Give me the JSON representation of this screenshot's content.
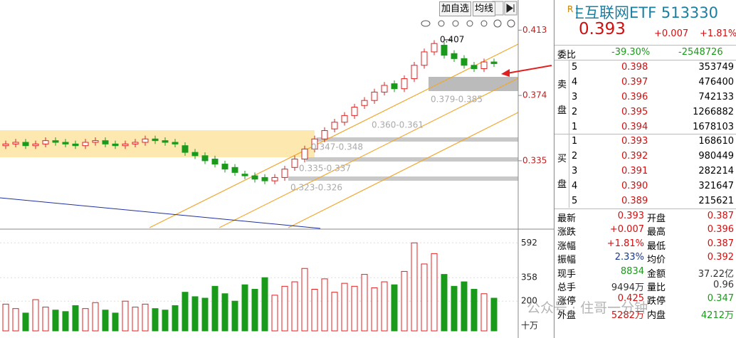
{
  "chart_data": {
    "type": "candlestick",
    "open": [
      0.344,
      0.345,
      0.346,
      0.344,
      0.345,
      0.347,
      0.346,
      0.345,
      0.344,
      0.346,
      0.347,
      0.345,
      0.344,
      0.345,
      0.346,
      0.348,
      0.347,
      0.346,
      0.344,
      0.34,
      0.338,
      0.336,
      0.333,
      0.331,
      0.327,
      0.326,
      0.325,
      0.323,
      0.325,
      0.331,
      0.336,
      0.342,
      0.348,
      0.354,
      0.358,
      0.362,
      0.368,
      0.371,
      0.376,
      0.381,
      0.378,
      0.384,
      0.392,
      0.4,
      0.404,
      0.399,
      0.396,
      0.392,
      0.39,
      0.394
    ],
    "close": [
      0.345,
      0.346,
      0.344,
      0.345,
      0.347,
      0.346,
      0.345,
      0.344,
      0.346,
      0.347,
      0.345,
      0.344,
      0.345,
      0.346,
      0.348,
      0.347,
      0.346,
      0.345,
      0.34,
      0.338,
      0.335,
      0.333,
      0.33,
      0.328,
      0.326,
      0.324,
      0.323,
      0.325,
      0.33,
      0.336,
      0.342,
      0.348,
      0.353,
      0.358,
      0.362,
      0.367,
      0.371,
      0.376,
      0.38,
      0.378,
      0.384,
      0.392,
      0.4,
      0.405,
      0.398,
      0.396,
      0.392,
      0.39,
      0.394,
      0.393
    ],
    "high": [
      0.347,
      0.348,
      0.348,
      0.347,
      0.349,
      0.349,
      0.348,
      0.347,
      0.348,
      0.349,
      0.349,
      0.347,
      0.347,
      0.348,
      0.35,
      0.35,
      0.349,
      0.348,
      0.346,
      0.342,
      0.34,
      0.338,
      0.335,
      0.333,
      0.329,
      0.328,
      0.327,
      0.327,
      0.332,
      0.338,
      0.344,
      0.35,
      0.355,
      0.36,
      0.364,
      0.369,
      0.373,
      0.378,
      0.382,
      0.383,
      0.386,
      0.394,
      0.402,
      0.407,
      0.406,
      0.401,
      0.398,
      0.394,
      0.396,
      0.396
    ],
    "low": [
      0.342,
      0.343,
      0.342,
      0.342,
      0.343,
      0.344,
      0.343,
      0.342,
      0.342,
      0.344,
      0.343,
      0.342,
      0.342,
      0.343,
      0.344,
      0.345,
      0.344,
      0.343,
      0.338,
      0.336,
      0.333,
      0.331,
      0.328,
      0.326,
      0.324,
      0.322,
      0.321,
      0.321,
      0.323,
      0.329,
      0.334,
      0.34,
      0.346,
      0.352,
      0.356,
      0.36,
      0.366,
      0.369,
      0.374,
      0.376,
      0.376,
      0.382,
      0.39,
      0.398,
      0.396,
      0.394,
      0.39,
      0.388,
      0.388,
      0.391
    ],
    "ylim": [
      0.295,
      0.431
    ],
    "yticks": [
      0.413,
      0.374,
      0.335
    ],
    "up_color": "#e02020",
    "down_color": "#1a9a1a",
    "volume": {
      "values": [
        180,
        150,
        120,
        210,
        160,
        140,
        130,
        170,
        150,
        190,
        140,
        120,
        200,
        160,
        180,
        150,
        140,
        170,
        260,
        230,
        220,
        300,
        250,
        200,
        310,
        280,
        358,
        240,
        300,
        330,
        420,
        280,
        350,
        260,
        320,
        300,
        380,
        290,
        330,
        310,
        400,
        592,
        450,
        520,
        380,
        300,
        330,
        280,
        250,
        220
      ],
      "ylim": [
        0,
        670
      ],
      "yticks": [
        592,
        358,
        200
      ],
      "unit": "十万"
    },
    "annotations": [
      "0.407",
      "0.379-0.385",
      "0.360-0.361",
      "0.347-0.348",
      "0.335-0.337",
      "0.323-0.326"
    ]
  },
  "toolbar": {
    "buttons": [
      "加自选",
      "均线"
    ]
  },
  "quote": {
    "tag": "R",
    "title": "恒生互联网ETF 513330",
    "price": "0.393",
    "change": "+0.007",
    "pct": "+1.81%",
    "weibi": {
      "label": "委比",
      "pct": "-39.30%",
      "diff": "-2548726"
    },
    "sell": {
      "label": [
        "卖",
        "盘"
      ],
      "rows": [
        [
          "5",
          "0.398",
          "353749"
        ],
        [
          "4",
          "0.397",
          "476400"
        ],
        [
          "3",
          "0.396",
          "742133"
        ],
        [
          "2",
          "0.395",
          "1266882"
        ],
        [
          "1",
          "0.394",
          "1678103"
        ]
      ]
    },
    "buy": {
      "label": [
        "买",
        "盘"
      ],
      "rows": [
        [
          "1",
          "0.393",
          "168610"
        ],
        [
          "2",
          "0.392",
          "980449"
        ],
        [
          "3",
          "0.391",
          "282214"
        ],
        [
          "4",
          "0.390",
          "321647"
        ],
        [
          "5",
          "0.389",
          "215621"
        ]
      ]
    },
    "stats": [
      [
        {
          "label": "最新"
        },
        {
          "value": "0.393",
          "color": "#d01010"
        },
        {
          "label": "开盘"
        },
        {
          "value": "0.387",
          "color": "#d01010"
        }
      ],
      [
        {
          "label": "涨跌"
        },
        {
          "value": "+0.007",
          "color": "#d01010"
        },
        {
          "label": "最高"
        },
        {
          "value": "0.396",
          "color": "#d01010"
        }
      ],
      [
        {
          "label": "涨幅"
        },
        {
          "value": "+1.81%",
          "color": "#d01010"
        },
        {
          "label": "最低"
        },
        {
          "value": "0.387",
          "color": "#d01010"
        }
      ],
      [
        {
          "label": "振幅"
        },
        {
          "value": "2.33%",
          "color": "#1a3a8a"
        },
        {
          "label": "均价"
        },
        {
          "value": "0.392",
          "color": "#d01010"
        }
      ],
      [
        {
          "label": "现手"
        },
        {
          "value": "8834",
          "color": "#1a9a1a"
        },
        {
          "label": "金额"
        },
        {
          "value": "37.22亿",
          "color": "#333"
        }
      ],
      [
        {
          "label": "总手"
        },
        {
          "value": "9494万",
          "color": "#333"
        },
        {
          "label": "量比"
        },
        {
          "value": "0.96",
          "color": "#333"
        }
      ],
      [
        {
          "label": "涨停"
        },
        {
          "value": "0.425",
          "color": "#d01010"
        },
        {
          "label": "跌停"
        },
        {
          "value": "0.347",
          "color": "#1a9a1a"
        }
      ],
      [
        {
          "label": "外盘"
        },
        {
          "value": "5282万",
          "color": "#d01010"
        },
        {
          "label": "内盘"
        },
        {
          "value": "4212万",
          "color": "#1a9a1a"
        }
      ]
    ]
  },
  "watermark": "公众号 · 住哥一分钟"
}
